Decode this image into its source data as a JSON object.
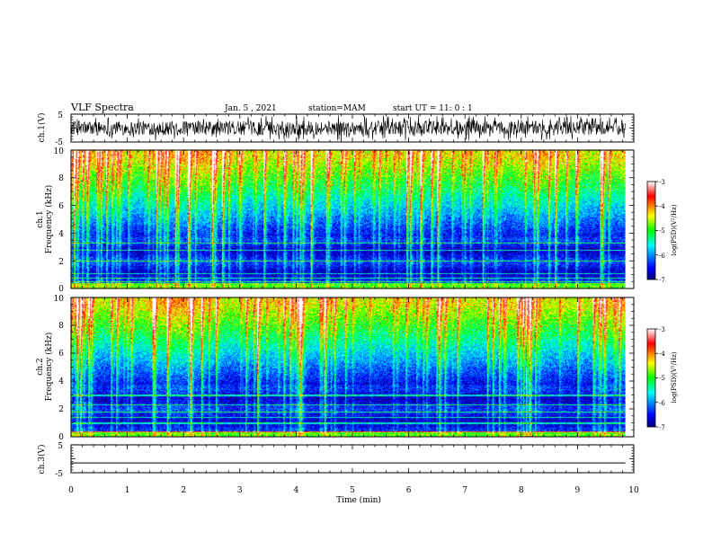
{
  "header": {
    "title": "VLF Spectra",
    "date": "Jan. 5 , 2021",
    "station": "station=MAM",
    "start": "start UT =  11: 0  : 1"
  },
  "chart_data": [
    {
      "type": "line",
      "name": "ch1-waveform",
      "ylabel": "ch.1(V)",
      "ylim": [
        -5,
        5
      ],
      "ytick_labels": [
        "5",
        "-5"
      ],
      "xlim": [
        0,
        10
      ]
    },
    {
      "type": "heatmap",
      "name": "ch1-spectrogram",
      "ylabel_line1": "ch.1",
      "ylabel_line2": "Frequency (kHz)",
      "ylim": [
        0,
        10
      ],
      "ytick_labels": [
        "0",
        "2",
        "4",
        "6",
        "8",
        "10"
      ],
      "xlim": [
        0,
        10
      ],
      "data_xmax": 9.85,
      "colorbar": {
        "label": "log(PSD)(V²/Hz)",
        "range": [
          -7,
          -3
        ],
        "tick_labels": [
          "-3",
          "-4",
          "-5",
          "-6",
          "-7"
        ]
      }
    },
    {
      "type": "heatmap",
      "name": "ch2-spectrogram",
      "ylabel_line1": "ch.2",
      "ylabel_line2": "Frequency (kHz)",
      "ylim": [
        0,
        10
      ],
      "ytick_labels": [
        "0",
        "2",
        "4",
        "6",
        "8",
        "10"
      ],
      "xlim": [
        0,
        10
      ],
      "data_xmax": 9.85,
      "colorbar": {
        "label": "log(PSD)(V²/Hz)",
        "range": [
          -7,
          -3
        ],
        "tick_labels": [
          "-3",
          "-4",
          "-5",
          "-6",
          "-7"
        ]
      }
    },
    {
      "type": "line",
      "name": "ch3-waveform",
      "ylabel": "ch.3(V)",
      "ylim": [
        -5,
        5
      ],
      "ytick_labels": [
        "5",
        "-5"
      ],
      "y_value": -1.5,
      "xlim": [
        0,
        10
      ]
    }
  ],
  "x_axis": {
    "label": "Time (min)",
    "tick_labels": [
      "0",
      "1",
      "2",
      "3",
      "4",
      "5",
      "6",
      "7",
      "8",
      "9",
      "10"
    ]
  }
}
